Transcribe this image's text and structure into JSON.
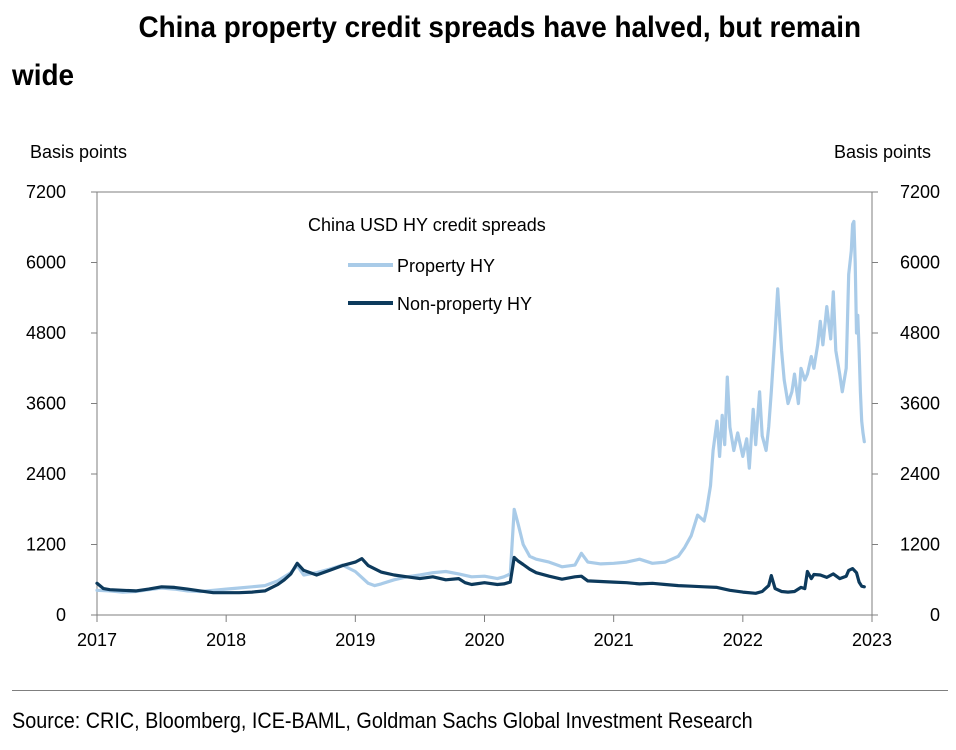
{
  "title": "China property credit spreads have halved, but remain wide",
  "unit_left": "Basis points",
  "unit_right": "Basis points",
  "source": "Source: CRIC, Bloomberg, ICE-BAML, Goldman Sachs Global Investment Research",
  "colors": {
    "property": "#a9cbe8",
    "non_property": "#0d3a5c",
    "axis": "#7f7f7f"
  },
  "chart_data": {
    "type": "line",
    "title": "China property credit spreads have halved, but remain wide",
    "legend_title": "China USD HY credit spreads",
    "legend_position": "top-left",
    "ylabel_left": "Basis points",
    "ylabel_right": "Basis points",
    "ylim": [
      0,
      7200
    ],
    "yticks": [
      0,
      1200,
      2400,
      3600,
      4800,
      6000,
      7200
    ],
    "xlim": [
      2017,
      2023
    ],
    "xticks": [
      2017,
      2018,
      2019,
      2020,
      2021,
      2022,
      2023
    ],
    "grid": false,
    "series": [
      {
        "name": "Property HY",
        "color": "#a9cbe8",
        "x": [
          2017.0,
          2017.1,
          2017.2,
          2017.3,
          2017.4,
          2017.5,
          2017.6,
          2017.7,
          2017.8,
          2017.9,
          2018.0,
          2018.1,
          2018.2,
          2018.3,
          2018.4,
          2018.5,
          2018.55,
          2018.6,
          2018.7,
          2018.8,
          2018.9,
          2019.0,
          2019.05,
          2019.1,
          2019.15,
          2019.2,
          2019.3,
          2019.4,
          2019.5,
          2019.6,
          2019.7,
          2019.8,
          2019.9,
          2020.0,
          2020.1,
          2020.15,
          2020.2,
          2020.23,
          2020.26,
          2020.3,
          2020.35,
          2020.4,
          2020.5,
          2020.6,
          2020.7,
          2020.75,
          2020.8,
          2020.9,
          2021.0,
          2021.1,
          2021.2,
          2021.3,
          2021.4,
          2021.45,
          2021.5,
          2021.55,
          2021.6,
          2021.65,
          2021.7,
          2021.72,
          2021.75,
          2021.77,
          2021.8,
          2021.82,
          2021.84,
          2021.86,
          2021.88,
          2021.9,
          2021.93,
          2021.96,
          2022.0,
          2022.03,
          2022.05,
          2022.08,
          2022.1,
          2022.13,
          2022.15,
          2022.18,
          2022.2,
          2022.22,
          2022.25,
          2022.27,
          2022.3,
          2022.32,
          2022.35,
          2022.38,
          2022.4,
          2022.43,
          2022.45,
          2022.48,
          2022.5,
          2022.53,
          2022.55,
          2022.58,
          2022.6,
          2022.62,
          2022.65,
          2022.68,
          2022.7,
          2022.72,
          2022.75,
          2022.77,
          2022.8,
          2022.82,
          2022.84,
          2022.85,
          2022.86,
          2022.87,
          2022.88,
          2022.89,
          2022.9,
          2022.91,
          2022.92,
          2022.93,
          2022.94
        ],
        "values": [
          420,
          410,
          390,
          400,
          430,
          460,
          440,
          410,
          400,
          420,
          440,
          460,
          480,
          500,
          580,
          720,
          840,
          680,
          720,
          780,
          850,
          740,
          640,
          540,
          500,
          530,
          600,
          650,
          680,
          720,
          740,
          700,
          650,
          660,
          620,
          650,
          700,
          1800,
          1550,
          1200,
          1000,
          950,
          900,
          820,
          850,
          1050,
          900,
          870,
          880,
          900,
          950,
          880,
          900,
          950,
          1000,
          1150,
          1350,
          1700,
          1600,
          1800,
          2200,
          2800,
          3300,
          2700,
          3400,
          2900,
          4050,
          3200,
          2800,
          3100,
          2700,
          3000,
          2500,
          3500,
          2900,
          3800,
          3050,
          2800,
          3200,
          3800,
          4800,
          5550,
          4500,
          4000,
          3600,
          3800,
          4100,
          3600,
          4200,
          4000,
          4100,
          4400,
          4200,
          4600,
          5000,
          4600,
          5250,
          4700,
          5500,
          4500,
          4100,
          3800,
          4200,
          5800,
          6200,
          6650,
          6700,
          6000,
          4800,
          5100,
          4500,
          3800,
          3300,
          3100,
          2950
        ]
      },
      {
        "name": "Non-property HY",
        "color": "#0d3a5c",
        "x": [
          2017.0,
          2017.05,
          2017.1,
          2017.2,
          2017.3,
          2017.4,
          2017.5,
          2017.6,
          2017.7,
          2017.8,
          2017.9,
          2018.0,
          2018.1,
          2018.2,
          2018.3,
          2018.4,
          2018.45,
          2018.5,
          2018.55,
          2018.6,
          2018.7,
          2018.8,
          2018.9,
          2019.0,
          2019.05,
          2019.1,
          2019.2,
          2019.3,
          2019.4,
          2019.5,
          2019.6,
          2019.7,
          2019.8,
          2019.85,
          2019.9,
          2020.0,
          2020.1,
          2020.15,
          2020.2,
          2020.23,
          2020.26,
          2020.3,
          2020.35,
          2020.4,
          2020.5,
          2020.6,
          2020.7,
          2020.75,
          2020.8,
          2020.9,
          2021.0,
          2021.1,
          2021.2,
          2021.3,
          2021.4,
          2021.5,
          2021.6,
          2021.7,
          2021.8,
          2021.9,
          2022.0,
          2022.1,
          2022.15,
          2022.2,
          2022.22,
          2022.25,
          2022.3,
          2022.35,
          2022.4,
          2022.45,
          2022.48,
          2022.5,
          2022.53,
          2022.55,
          2022.6,
          2022.65,
          2022.7,
          2022.75,
          2022.8,
          2022.82,
          2022.85,
          2022.88,
          2022.9,
          2022.92,
          2022.94
        ],
        "values": [
          540,
          450,
          430,
          420,
          410,
          440,
          480,
          470,
          440,
          410,
          380,
          380,
          380,
          390,
          410,
          520,
          600,
          700,
          880,
          760,
          680,
          760,
          840,
          900,
          960,
          840,
          730,
          680,
          650,
          620,
          650,
          600,
          620,
          550,
          520,
          550,
          520,
          530,
          560,
          980,
          920,
          860,
          780,
          720,
          660,
          610,
          650,
          660,
          580,
          570,
          560,
          550,
          530,
          540,
          520,
          500,
          490,
          480,
          470,
          420,
          390,
          370,
          400,
          500,
          670,
          450,
          400,
          390,
          400,
          470,
          450,
          740,
          620,
          690,
          680,
          640,
          700,
          620,
          660,
          760,
          790,
          720,
          560,
          490,
          480
        ]
      }
    ]
  }
}
